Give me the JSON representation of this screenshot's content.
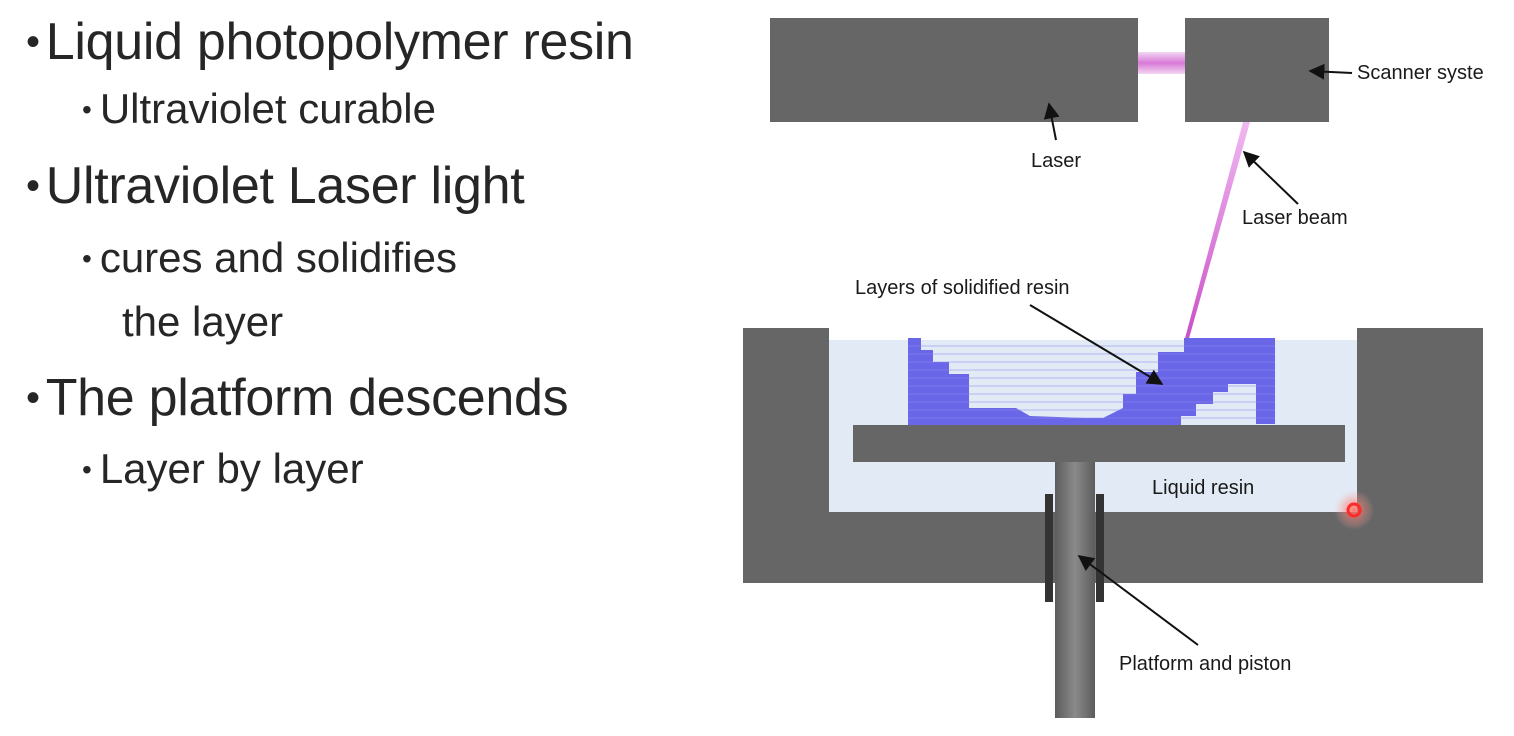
{
  "bullets": [
    {
      "text": "Liquid photopolymer resin",
      "level": 1
    },
    {
      "text": "Ultraviolet curable",
      "level": 2
    },
    {
      "text": "Ultraviolet Laser light",
      "level": 1
    },
    {
      "text": "cures and solidifies",
      "level": 2
    },
    {
      "text": "the layer",
      "level": 2,
      "continuation": true
    },
    {
      "text": "The platform descends",
      "level": 1
    },
    {
      "text": "Layer by layer",
      "level": 2
    }
  ],
  "diagram": {
    "labels": {
      "laser": "Laser",
      "scanner": "Scanner syste",
      "laser_beam": "Laser beam",
      "layers": "Layers of solidified resin",
      "liquid_resin": "Liquid resin",
      "platform": "Platform and piston"
    },
    "colors": {
      "machine_gray": "#666666",
      "resin_blue": "#e1eaf5",
      "solid_resin": "#6a66e8",
      "beam_magenta": "#d97ad9",
      "pointer_red": "#ff2020"
    }
  }
}
